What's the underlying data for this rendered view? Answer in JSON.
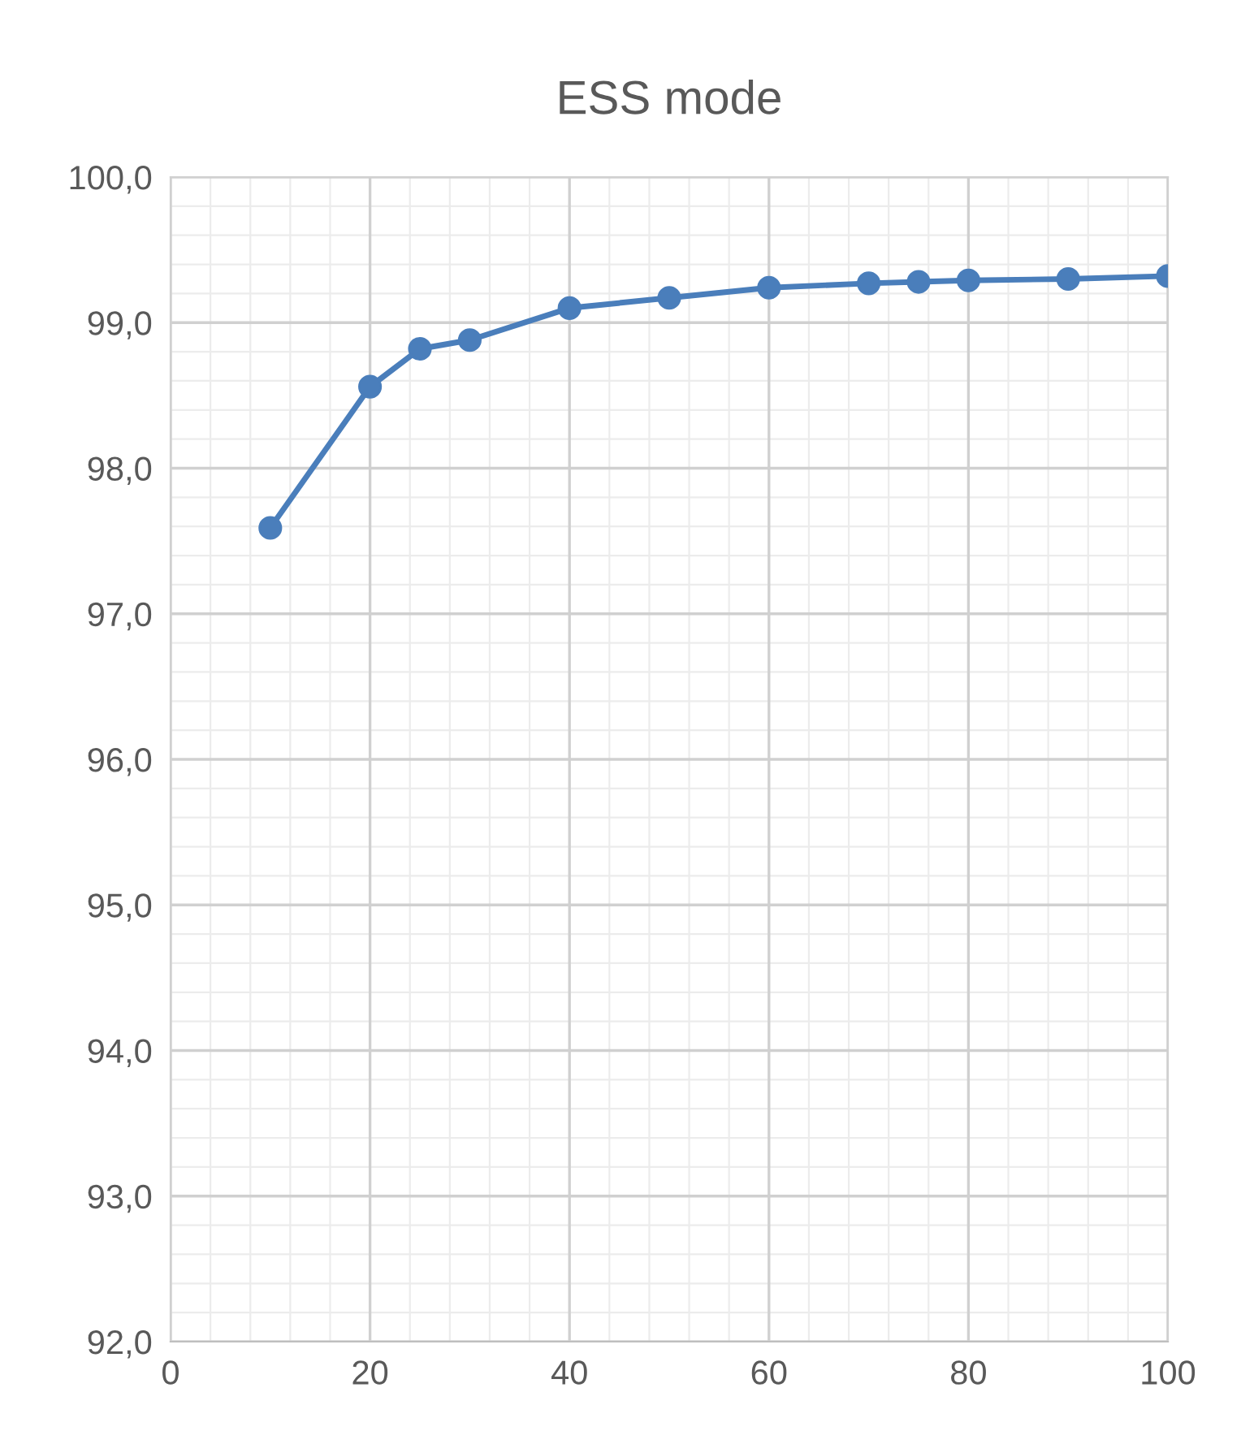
{
  "chart_data": {
    "type": "line",
    "title": "ESS mode",
    "x": [
      10,
      20,
      25,
      30,
      40,
      50,
      60,
      70,
      75,
      80,
      90,
      100
    ],
    "series": [
      {
        "color": "#4a7ebb",
        "values": [
          97.59,
          98.56,
          98.82,
          98.88,
          99.1,
          99.17,
          99.24,
          99.27,
          99.28,
          99.29,
          99.3,
          99.32
        ]
      }
    ],
    "xlim": [
      0,
      100
    ],
    "xticks": [
      0,
      20,
      40,
      60,
      80,
      100
    ],
    "ylim": [
      92,
      100
    ],
    "yticks": [
      {
        "value": 92,
        "label": "92,0"
      },
      {
        "value": 93,
        "label": "93,0"
      },
      {
        "value": 94,
        "label": "94,0"
      },
      {
        "value": 95,
        "label": "95,0"
      },
      {
        "value": 96,
        "label": "96,0"
      },
      {
        "value": 97,
        "label": "97,0"
      },
      {
        "value": 98,
        "label": "98,0"
      },
      {
        "value": 99,
        "label": "99,0"
      },
      {
        "value": 100,
        "label": "100,0"
      }
    ],
    "grid": true,
    "marker": "circle",
    "line_style": "solid"
  }
}
